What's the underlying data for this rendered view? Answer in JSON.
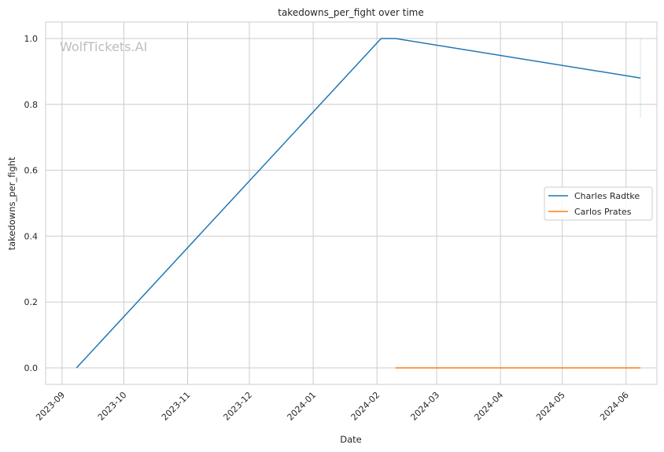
{
  "watermark": "WolfTickets.AI",
  "chart_data": {
    "type": "line",
    "title": "takedowns_per_fight over time",
    "xlabel": "Date",
    "ylabel": "takedowns_per_fight",
    "x_type": "date",
    "xlim": [
      "2023-08-24",
      "2024-06-16"
    ],
    "ylim": [
      -0.05,
      1.05
    ],
    "x_ticks": [
      "2023-09-01",
      "2023-10-01",
      "2023-11-01",
      "2023-12-01",
      "2024-01-01",
      "2024-02-01",
      "2024-03-01",
      "2024-04-01",
      "2024-05-01",
      "2024-06-01"
    ],
    "x_tick_labels": [
      "2023-09",
      "2023-10",
      "2023-11",
      "2023-12",
      "2024-01",
      "2024-02",
      "2024-03",
      "2024-04",
      "2024-05",
      "2024-06"
    ],
    "y_ticks": [
      0.0,
      0.2,
      0.4,
      0.6,
      0.8,
      1.0
    ],
    "y_tick_labels": [
      "0.0",
      "0.2",
      "0.4",
      "0.6",
      "0.8",
      "1.0"
    ],
    "grid": true,
    "legend_position": "center-right",
    "series": [
      {
        "name": "Charles Radtke",
        "color": "#1f77b4",
        "points": [
          {
            "x": "2023-09-08",
            "y": 0.0
          },
          {
            "x": "2024-02-03",
            "y": 1.0
          },
          {
            "x": "2024-02-10",
            "y": 1.0
          },
          {
            "x": "2024-06-08",
            "y": 0.88
          }
        ],
        "error_band": {
          "x": "2024-06-08",
          "low": 0.76,
          "high": 1.0
        }
      },
      {
        "name": "Carlos Prates",
        "color": "#ff7f0e",
        "points": [
          {
            "x": "2024-02-10",
            "y": 0.0
          },
          {
            "x": "2024-06-08",
            "y": 0.0
          }
        ]
      }
    ]
  }
}
